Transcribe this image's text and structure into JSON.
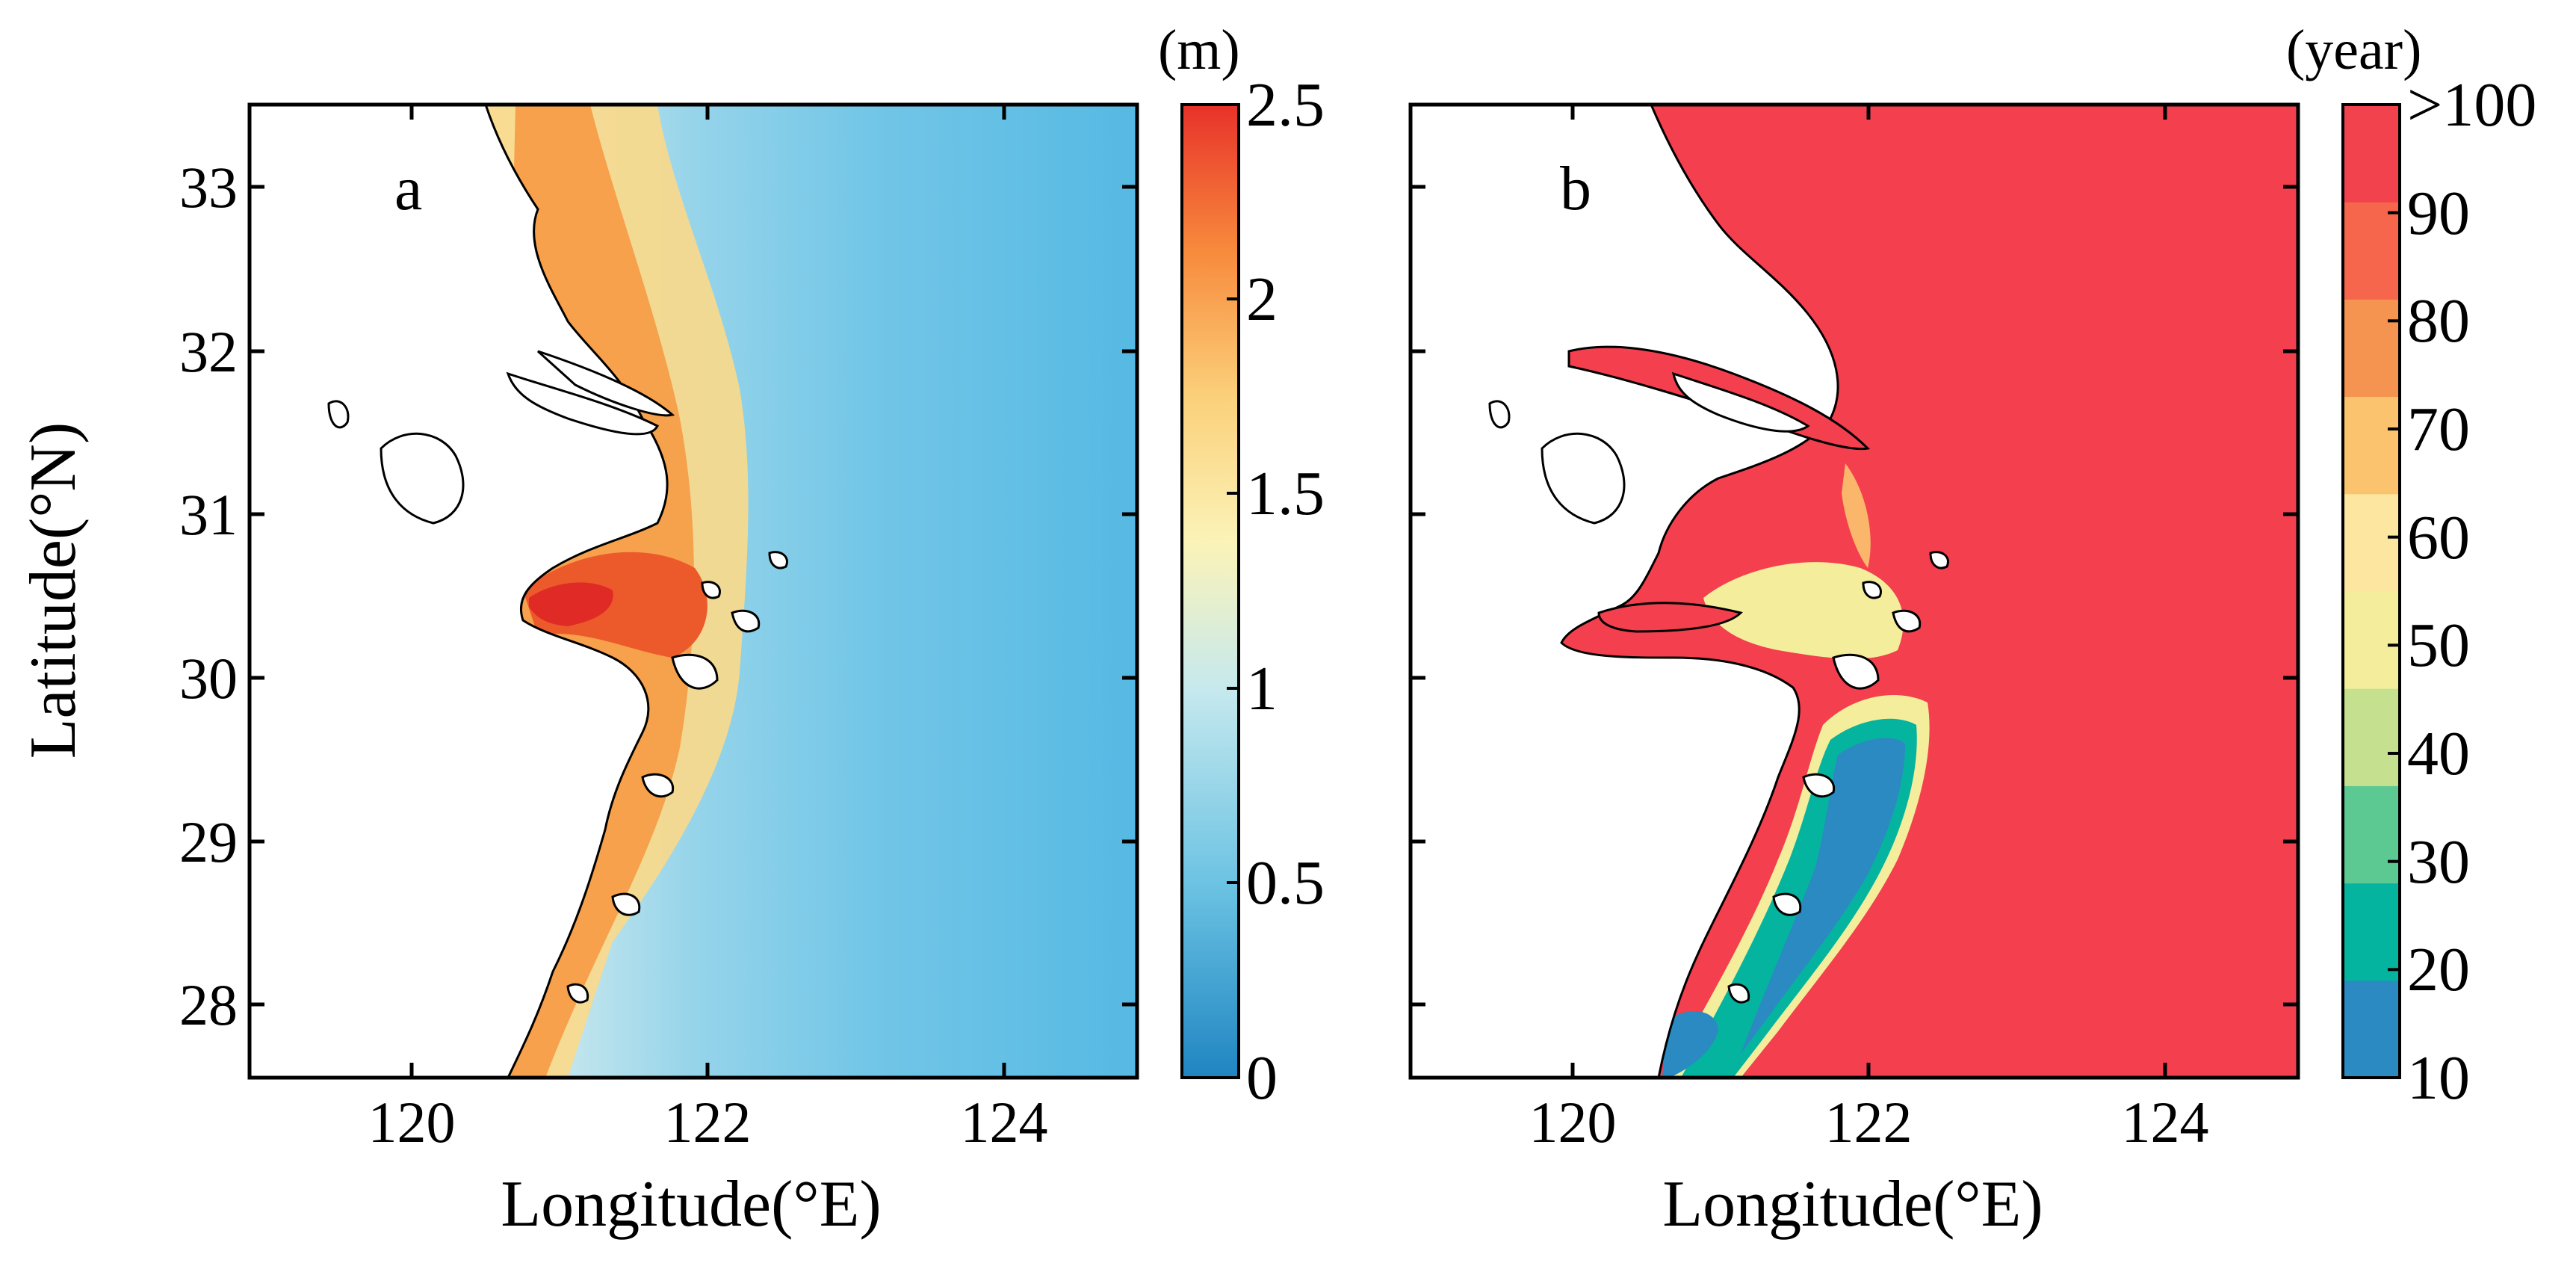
{
  "figure": {
    "y_axis_title": "Latitude(°N)",
    "x_tick_labels": [
      "120",
      "122",
      "124"
    ],
    "y_tick_labels": [
      "33",
      "32",
      "31",
      "30",
      "29",
      "28"
    ]
  },
  "panels": [
    {
      "letter": "a",
      "x_axis_title": "Longitude(°E)",
      "colorbar": {
        "unit": "(m)",
        "labels": [
          "2.5",
          "2",
          "1.5",
          "1",
          "0.5",
          "0"
        ],
        "colors": [
          "#2b8cc4",
          "#6cc3e3",
          "#c6e9ee",
          "#fbf3b8",
          "#f9a153",
          "#e8322a"
        ]
      },
      "colors": {
        "offshore": "#56b9e3",
        "nearshore_peak": "#e83a2a",
        "land": "#ffffff"
      }
    },
    {
      "letter": "b",
      "x_axis_title": "Longitude(°E)",
      "colorbar": {
        "unit": "(year)",
        "labels": [
          ">100",
          "90",
          "80",
          "70",
          "60",
          "50",
          "40",
          "30",
          "20",
          "10"
        ],
        "colors": [
          "#2a8ac1",
          "#05b49f",
          "#5cc993",
          "#c5e08f",
          "#f4ee9c",
          "#fde7a0",
          "#fbc36e",
          "#f59351",
          "#f5664d",
          "#f2424d"
        ]
      },
      "colors": {
        "sea": "#f33f4e",
        "low_exchange": "#2a8ac1",
        "land": "#ffffff"
      }
    }
  ]
}
